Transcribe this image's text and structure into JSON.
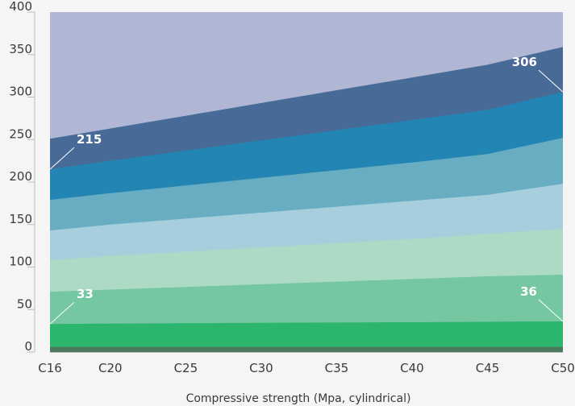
{
  "chart_data": {
    "type": "area",
    "stacked": true,
    "categories": [
      "C16",
      "C20",
      "C25",
      "C30",
      "C35",
      "C40",
      "C45",
      "C50"
    ],
    "x_numeric": [
      16,
      20,
      25,
      30,
      35,
      40,
      45,
      50
    ],
    "xlabel": "Compressive strength (Mpa, cylindrical)",
    "ylabel": "",
    "ylim": [
      0,
      400
    ],
    "yticks": [
      0,
      50,
      100,
      150,
      200,
      250,
      300,
      350,
      400
    ],
    "grid": false,
    "legend": "none",
    "layer_colors": [
      "#4a7a5e",
      "#2bb56d",
      "#74c7a0",
      "#acdac5",
      "#a6cedc",
      "#68adc2",
      "#2385b3",
      "#486a97",
      "#b0b7d5"
    ],
    "series": [
      {
        "values": [
          6,
          6,
          6,
          6,
          6,
          6,
          6,
          6
        ]
      },
      {
        "values": [
          33,
          33.4,
          33.9,
          34.3,
          34.7,
          35.1,
          35.6,
          36
        ]
      },
      {
        "values": [
          71,
          73.5,
          76.6,
          79.7,
          82.8,
          85.9,
          89.1,
          91
        ]
      },
      {
        "values": [
          108,
          113,
          118,
          123,
          128,
          133,
          139,
          145
        ]
      },
      {
        "values": [
          143,
          150,
          157,
          164,
          171,
          178,
          185,
          198
        ]
      },
      {
        "values": [
          179,
          187,
          196,
          205,
          214,
          223,
          233,
          252
        ]
      },
      {
        "values": [
          215,
          225,
          237,
          249,
          261,
          273,
          285,
          306
        ]
      },
      {
        "values": [
          251,
          263,
          278,
          293,
          308,
          323,
          338,
          359
        ]
      },
      {
        "values": [
          400,
          400,
          400,
          400,
          400,
          400,
          400,
          400
        ]
      }
    ],
    "annotations": [
      {
        "text": "215",
        "x": "C16",
        "y": 215
      },
      {
        "text": "306",
        "x": "C50",
        "y": 306
      },
      {
        "text": "33",
        "x": "C16",
        "y": 33
      },
      {
        "text": "36",
        "x": "C50",
        "y": 36
      }
    ]
  }
}
